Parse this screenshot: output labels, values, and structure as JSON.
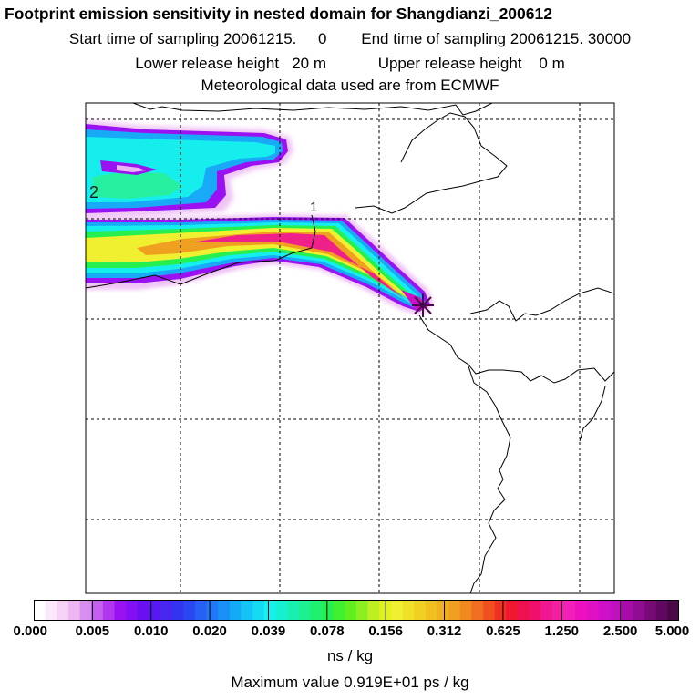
{
  "header": {
    "title": "Footprint emission sensitivity in nested domain for Shangdianzi_200612",
    "start_time": "Start time of sampling 20061215.     0",
    "end_time": "End time of sampling 20061215. 30000",
    "lower_release": "Lower release height   20 m",
    "upper_release": "Upper release height    0 m",
    "met_data": "Meteorological data used are from ECMWF"
  },
  "map": {
    "contour_labels": [
      "2",
      "1"
    ],
    "release_marker": "release-site-star-icon",
    "colors": {
      "white": "#ffffff",
      "lavender": "#ebb5f5",
      "violet": "#9a12f2",
      "blue": "#2a3cf0",
      "sky": "#14aaf6",
      "cyan": "#16f0f0",
      "green": "#26f050",
      "yellow": "#f0f030",
      "orange": "#f0a020",
      "pink": "#f0208a",
      "magenta": "#d810c8",
      "purple": "#4a0848"
    }
  },
  "legend": {
    "tick_labels": [
      "0.000",
      "0.005",
      "0.010",
      "0.020",
      "0.039",
      "0.078",
      "0.156",
      "0.312",
      "0.625",
      "1.250",
      "2.500",
      "5.000"
    ],
    "units": "ns / kg",
    "max_value": "Maximum value  0.919E+01 ps / kg",
    "segment_colors": [
      "#ffffff",
      "#fbe9fb",
      "#f6d3f6",
      "#eeb6f3",
      "#d98df0",
      "#c45ff0",
      "#b136f0",
      "#9a12f2",
      "#8210f2",
      "#6a10f0",
      "#5818f0",
      "#4626f0",
      "#3434f0",
      "#2a48f2",
      "#2660f4",
      "#2078f6",
      "#1890f6",
      "#14aaf6",
      "#14c4f6",
      "#16daf2",
      "#16f0f0",
      "#16f0d0",
      "#18f0b0",
      "#1cf090",
      "#20f070",
      "#26f050",
      "#40f030",
      "#60f020",
      "#8cf020",
      "#bcf020",
      "#e0f020",
      "#f0f030",
      "#f0e028",
      "#f0d020",
      "#f0c020",
      "#f0b020",
      "#f0a020",
      "#f08a20",
      "#f06e20",
      "#f05020",
      "#f03020",
      "#f01830",
      "#f01050",
      "#f0106c",
      "#f01890",
      "#f020a0",
      "#f020b8",
      "#ec10c0",
      "#e010c4",
      "#d010c8",
      "#c010c0",
      "#a80ca8",
      "#900c90",
      "#780a78",
      "#600860",
      "#4a0848"
    ]
  }
}
